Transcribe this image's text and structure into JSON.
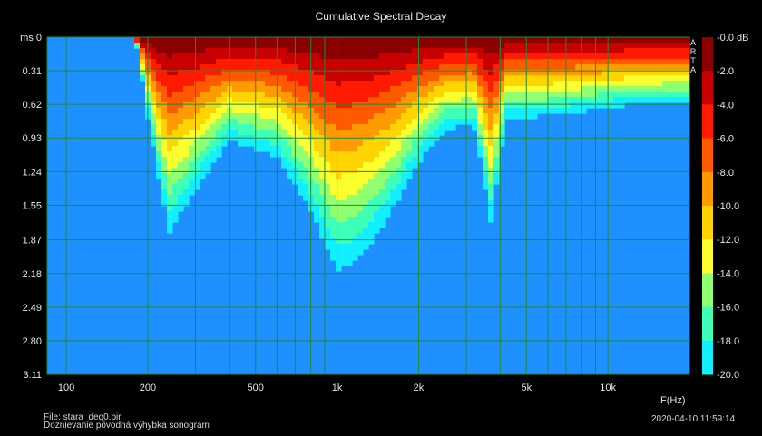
{
  "chart_data": {
    "type": "heatmap",
    "title": "Cumulative Spectral Decay",
    "xlabel": "F(Hz)",
    "ylabel": "ms",
    "x_scale": "log",
    "xlim": [
      85,
      20000
    ],
    "ylim": [
      0,
      3.11
    ],
    "x_ticks": [
      {
        "v": 100,
        "label": "100"
      },
      {
        "v": 200,
        "label": "200"
      },
      {
        "v": 500,
        "label": "500"
      },
      {
        "v": 1000,
        "label": "1k"
      },
      {
        "v": 2000,
        "label": "2k"
      },
      {
        "v": 5000,
        "label": "5k"
      },
      {
        "v": 10000,
        "label": "10k"
      }
    ],
    "y_ticks": [
      {
        "v": 0,
        "label": "ms 0"
      },
      {
        "v": 0.31,
        "label": "0.31"
      },
      {
        "v": 0.62,
        "label": "0.62"
      },
      {
        "v": 0.93,
        "label": "0.93"
      },
      {
        "v": 1.24,
        "label": "1.24"
      },
      {
        "v": 1.55,
        "label": "1.55"
      },
      {
        "v": 1.87,
        "label": "1.87"
      },
      {
        "v": 2.18,
        "label": "2.18"
      },
      {
        "v": 2.49,
        "label": "2.49"
      },
      {
        "v": 2.8,
        "label": "2.80"
      },
      {
        "v": 3.11,
        "label": "3.11"
      }
    ],
    "colorscale": {
      "label": "dB",
      "levels": [
        {
          "label": "-0.0 dB",
          "color": "#8b0000"
        },
        {
          "label": "-2.0",
          "color": "#c80000"
        },
        {
          "label": "-4.0",
          "color": "#ff1a00"
        },
        {
          "label": "-6.0",
          "color": "#ff5a00"
        },
        {
          "label": "-8.0",
          "color": "#ff9a00"
        },
        {
          "label": "-10.0",
          "color": "#ffd400"
        },
        {
          "label": "-12.0",
          "color": "#fbff2e"
        },
        {
          "label": "-14.0",
          "color": "#90ff70"
        },
        {
          "label": "-16.0",
          "color": "#3dffb9"
        },
        {
          "label": "-18.0",
          "color": "#12f0ff"
        },
        {
          "label": "-20.0",
          "color": "#1e90ff"
        }
      ]
    },
    "decay_floor_ms": [
      {
        "f": 85,
        "t": 0
      },
      {
        "f": 180,
        "t": 0.0
      },
      {
        "f": 205,
        "t": 0.9
      },
      {
        "f": 240,
        "t": 1.8
      },
      {
        "f": 300,
        "t": 1.4
      },
      {
        "f": 400,
        "t": 0.95
      },
      {
        "f": 600,
        "t": 1.1
      },
      {
        "f": 800,
        "t": 1.6
      },
      {
        "f": 1000,
        "t": 2.15
      },
      {
        "f": 1200,
        "t": 2.05
      },
      {
        "f": 1500,
        "t": 1.7
      },
      {
        "f": 2000,
        "t": 1.15
      },
      {
        "f": 2500,
        "t": 0.85
      },
      {
        "f": 3200,
        "t": 0.8
      },
      {
        "f": 3700,
        "t": 1.7
      },
      {
        "f": 4200,
        "t": 0.75
      },
      {
        "f": 6000,
        "t": 0.72
      },
      {
        "f": 8000,
        "t": 0.68
      },
      {
        "f": 12000,
        "t": 0.62
      },
      {
        "f": 20000,
        "t": 0.6
      }
    ],
    "brand": "ARTA"
  },
  "footer": {
    "file": "File: stara_deg0.pir",
    "desc": "Doznievanie pôvodná výhybka sonogram",
    "timestamp": "2020-04-10   11:59:14"
  }
}
